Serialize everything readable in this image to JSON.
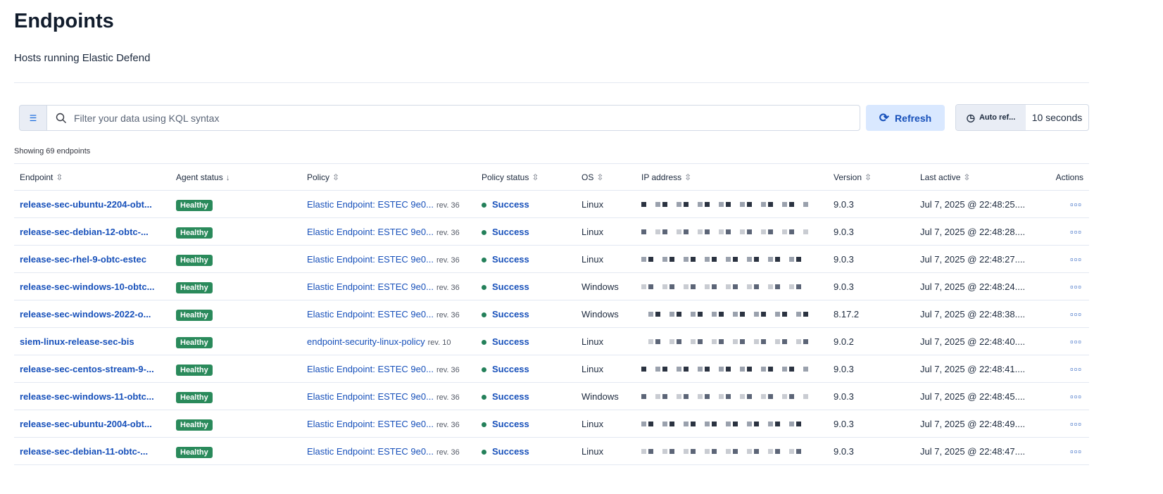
{
  "header": {
    "title": "Endpoints",
    "subtitle": "Hosts running Elastic Defend"
  },
  "search": {
    "placeholder": "Filter your data using KQL syntax"
  },
  "toolbar": {
    "refresh_label": "Refresh",
    "auto_refresh_label": "Auto ref...",
    "auto_refresh_interval": "10 seconds"
  },
  "showing": "Showing 69 endpoints",
  "columns": [
    "Endpoint",
    "Agent status",
    "Policy",
    "Policy status",
    "OS",
    "IP address",
    "Version",
    "Last active",
    "Actions"
  ],
  "rows": [
    {
      "endpoint": "release-sec-ubuntu-2204-obt...",
      "status": "Healthy",
      "policy": "Elastic Endpoint: ESTEC 9e0...",
      "rev": "rev. 36",
      "policy_status": "Success",
      "os": "Linux",
      "version": "9.0.3",
      "last_active": "Jul 7, 2025 @ 22:48:25...."
    },
    {
      "endpoint": "release-sec-debian-12-obtc-...",
      "status": "Healthy",
      "policy": "Elastic Endpoint: ESTEC 9e0...",
      "rev": "rev. 36",
      "policy_status": "Success",
      "os": "Linux",
      "version": "9.0.3",
      "last_active": "Jul 7, 2025 @ 22:48:28...."
    },
    {
      "endpoint": "release-sec-rhel-9-obtc-estec",
      "status": "Healthy",
      "policy": "Elastic Endpoint: ESTEC 9e0...",
      "rev": "rev. 36",
      "policy_status": "Success",
      "os": "Linux",
      "version": "9.0.3",
      "last_active": "Jul 7, 2025 @ 22:48:27...."
    },
    {
      "endpoint": "release-sec-windows-10-obtc...",
      "status": "Healthy",
      "policy": "Elastic Endpoint: ESTEC 9e0...",
      "rev": "rev. 36",
      "policy_status": "Success",
      "os": "Windows",
      "version": "9.0.3",
      "last_active": "Jul 7, 2025 @ 22:48:24...."
    },
    {
      "endpoint": "release-sec-windows-2022-o...",
      "status": "Healthy",
      "policy": "Elastic Endpoint: ESTEC 9e0...",
      "rev": "rev. 36",
      "policy_status": "Success",
      "os": "Windows",
      "version": "8.17.2",
      "last_active": "Jul 7, 2025 @ 22:48:38...."
    },
    {
      "endpoint": "siem-linux-release-sec-bis",
      "status": "Healthy",
      "policy": "endpoint-security-linux-policy",
      "rev": "rev. 10",
      "policy_status": "Success",
      "os": "Linux",
      "version": "9.0.2",
      "last_active": "Jul 7, 2025 @ 22:48:40...."
    },
    {
      "endpoint": "release-sec-centos-stream-9-...",
      "status": "Healthy",
      "policy": "Elastic Endpoint: ESTEC 9e0...",
      "rev": "rev. 36",
      "policy_status": "Success",
      "os": "Linux",
      "version": "9.0.3",
      "last_active": "Jul 7, 2025 @ 22:48:41...."
    },
    {
      "endpoint": "release-sec-windows-11-obtc...",
      "status": "Healthy",
      "policy": "Elastic Endpoint: ESTEC 9e0...",
      "rev": "rev. 36",
      "policy_status": "Success",
      "os": "Windows",
      "version": "9.0.3",
      "last_active": "Jul 7, 2025 @ 22:48:45...."
    },
    {
      "endpoint": "release-sec-ubuntu-2004-obt...",
      "status": "Healthy",
      "policy": "Elastic Endpoint: ESTEC 9e0...",
      "rev": "rev. 36",
      "policy_status": "Success",
      "os": "Linux",
      "version": "9.0.3",
      "last_active": "Jul 7, 2025 @ 22:48:49...."
    },
    {
      "endpoint": "release-sec-debian-11-obtc-...",
      "status": "Healthy",
      "policy": "Elastic Endpoint: ESTEC 9e0...",
      "rev": "rev. 36",
      "policy_status": "Success",
      "os": "Linux",
      "version": "9.0.3",
      "last_active": "Jul 7, 2025 @ 22:48:47...."
    }
  ],
  "colors": {
    "accent": "#1750ba",
    "healthy": "#2a8a5b",
    "success_dot": "#24805a",
    "refresh_bg": "#d9e8ff"
  },
  "icons": {
    "filter": "filter-icon",
    "search": "search-icon",
    "refresh": "refresh-icon",
    "auto_refresh": "clock-refresh-icon",
    "sort": "sort-icon",
    "sort_desc": "arrow-down-icon",
    "actions": "ellipsis-icon"
  }
}
